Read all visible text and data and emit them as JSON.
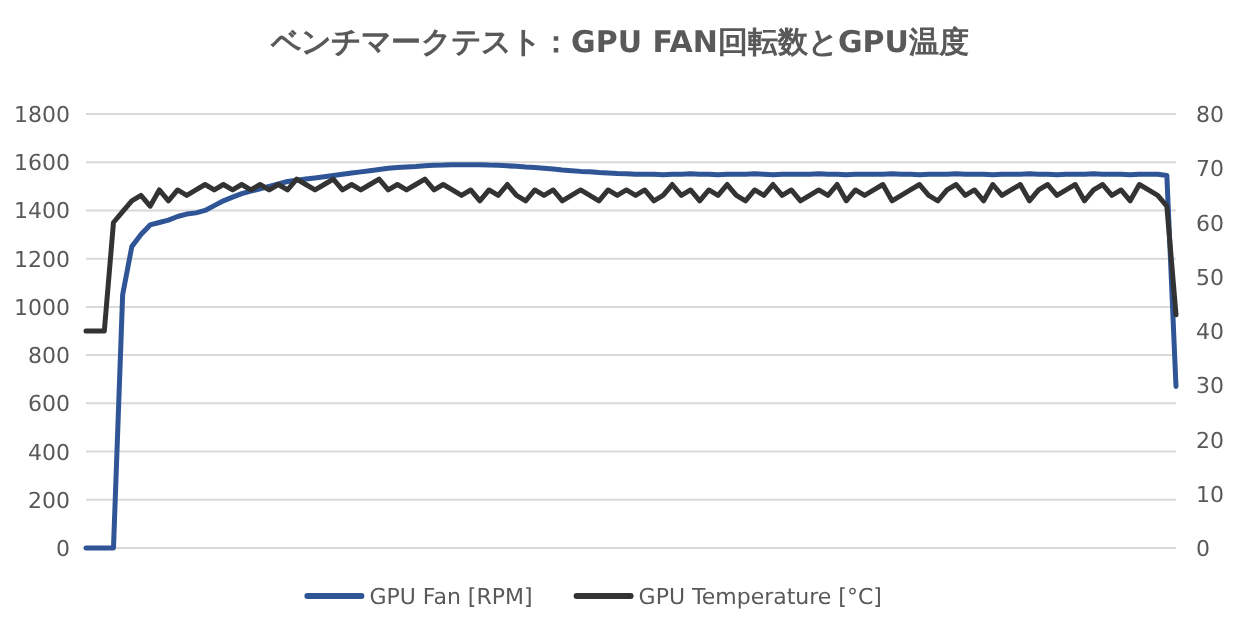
{
  "chart_data": {
    "type": "line",
    "title": "ベンチマークテスト：GPU FAN回転数とGPU温度",
    "categories": [
      null,
      null,
      null,
      null,
      null,
      null,
      null,
      null,
      null,
      null,
      null,
      null,
      null,
      null,
      null,
      null,
      null,
      null,
      null,
      null,
      null,
      null,
      null,
      null,
      null,
      null,
      null,
      null,
      null,
      null,
      null,
      null,
      null,
      null,
      null,
      null,
      null,
      null,
      null,
      null,
      null,
      null,
      null,
      null,
      null,
      null,
      null,
      null,
      null,
      null,
      null,
      null,
      null,
      null,
      null,
      null,
      null,
      null,
      null,
      null,
      null,
      null,
      null,
      null,
      null,
      null,
      null,
      null,
      null,
      null,
      null,
      null,
      null,
      null,
      null,
      null,
      null,
      null,
      null,
      null,
      null,
      null,
      null,
      null,
      null,
      null,
      null,
      null,
      null,
      null,
      null,
      null,
      null,
      null,
      null,
      null,
      null,
      null,
      null,
      null,
      null,
      null,
      null,
      null,
      null,
      null,
      null,
      null,
      null,
      null,
      null,
      null,
      null,
      null,
      null,
      null,
      null,
      null,
      null,
      null
    ],
    "series": [
      {
        "name": "GPU Fan [RPM]",
        "color": "#2f5597",
        "values": [
          0,
          0,
          0,
          0,
          1050,
          1250,
          1300,
          1340,
          1350,
          1360,
          1375,
          1385,
          1390,
          1400,
          1420,
          1440,
          1455,
          1470,
          1480,
          1490,
          1500,
          1510,
          1520,
          1525,
          1530,
          1535,
          1540,
          1545,
          1550,
          1555,
          1560,
          1565,
          1570,
          1575,
          1578,
          1580,
          1582,
          1585,
          1587,
          1588,
          1590,
          1590,
          1590,
          1590,
          1588,
          1587,
          1585,
          1583,
          1580,
          1578,
          1575,
          1572,
          1568,
          1565,
          1562,
          1560,
          1557,
          1555,
          1553,
          1552,
          1550,
          1550,
          1550,
          1548,
          1550,
          1550,
          1552,
          1550,
          1550,
          1548,
          1550,
          1550,
          1550,
          1552,
          1550,
          1548,
          1550,
          1550,
          1550,
          1550,
          1552,
          1550,
          1550,
          1548,
          1550,
          1550,
          1550,
          1550,
          1552,
          1550,
          1550,
          1548,
          1550,
          1550,
          1550,
          1552,
          1550,
          1550,
          1550,
          1548,
          1550,
          1550,
          1550,
          1552,
          1550,
          1550,
          1548,
          1550,
          1550,
          1550,
          1552,
          1550,
          1550,
          1550,
          1548,
          1550,
          1550,
          1550,
          1545,
          670
        ]
      },
      {
        "name": "GPU Temperature [°C]",
        "color": "#333333",
        "axis": "y2",
        "values": [
          40,
          40,
          40,
          60,
          62,
          64,
          65,
          63,
          66,
          64,
          66,
          65,
          66,
          67,
          66,
          67,
          66,
          67,
          66,
          67,
          66,
          67,
          66,
          68,
          67,
          66,
          67,
          68,
          66,
          67,
          66,
          67,
          68,
          66,
          67,
          66,
          67,
          68,
          66,
          67,
          66,
          65,
          66,
          64,
          66,
          65,
          67,
          65,
          64,
          66,
          65,
          66,
          64,
          65,
          66,
          65,
          64,
          66,
          65,
          66,
          65,
          66,
          64,
          65,
          67,
          65,
          66,
          64,
          66,
          65,
          67,
          65,
          64,
          66,
          65,
          67,
          65,
          66,
          64,
          65,
          66,
          65,
          67,
          64,
          66,
          65,
          66,
          67,
          64,
          65,
          66,
          67,
          65,
          64,
          66,
          67,
          65,
          66,
          64,
          67,
          65,
          66,
          67,
          64,
          66,
          67,
          65,
          66,
          67,
          64,
          66,
          67,
          65,
          66,
          64,
          67,
          66,
          65,
          63,
          43
        ]
      }
    ],
    "ylim": [
      0,
      1800
    ],
    "yticks": [
      0,
      200,
      400,
      600,
      800,
      1000,
      1200,
      1400,
      1600,
      1800
    ],
    "y2lim": [
      0,
      80
    ],
    "y2ticks": [
      0,
      10,
      20,
      30,
      40,
      50,
      60,
      70,
      80
    ],
    "grid": "y",
    "legend": "bottom"
  }
}
